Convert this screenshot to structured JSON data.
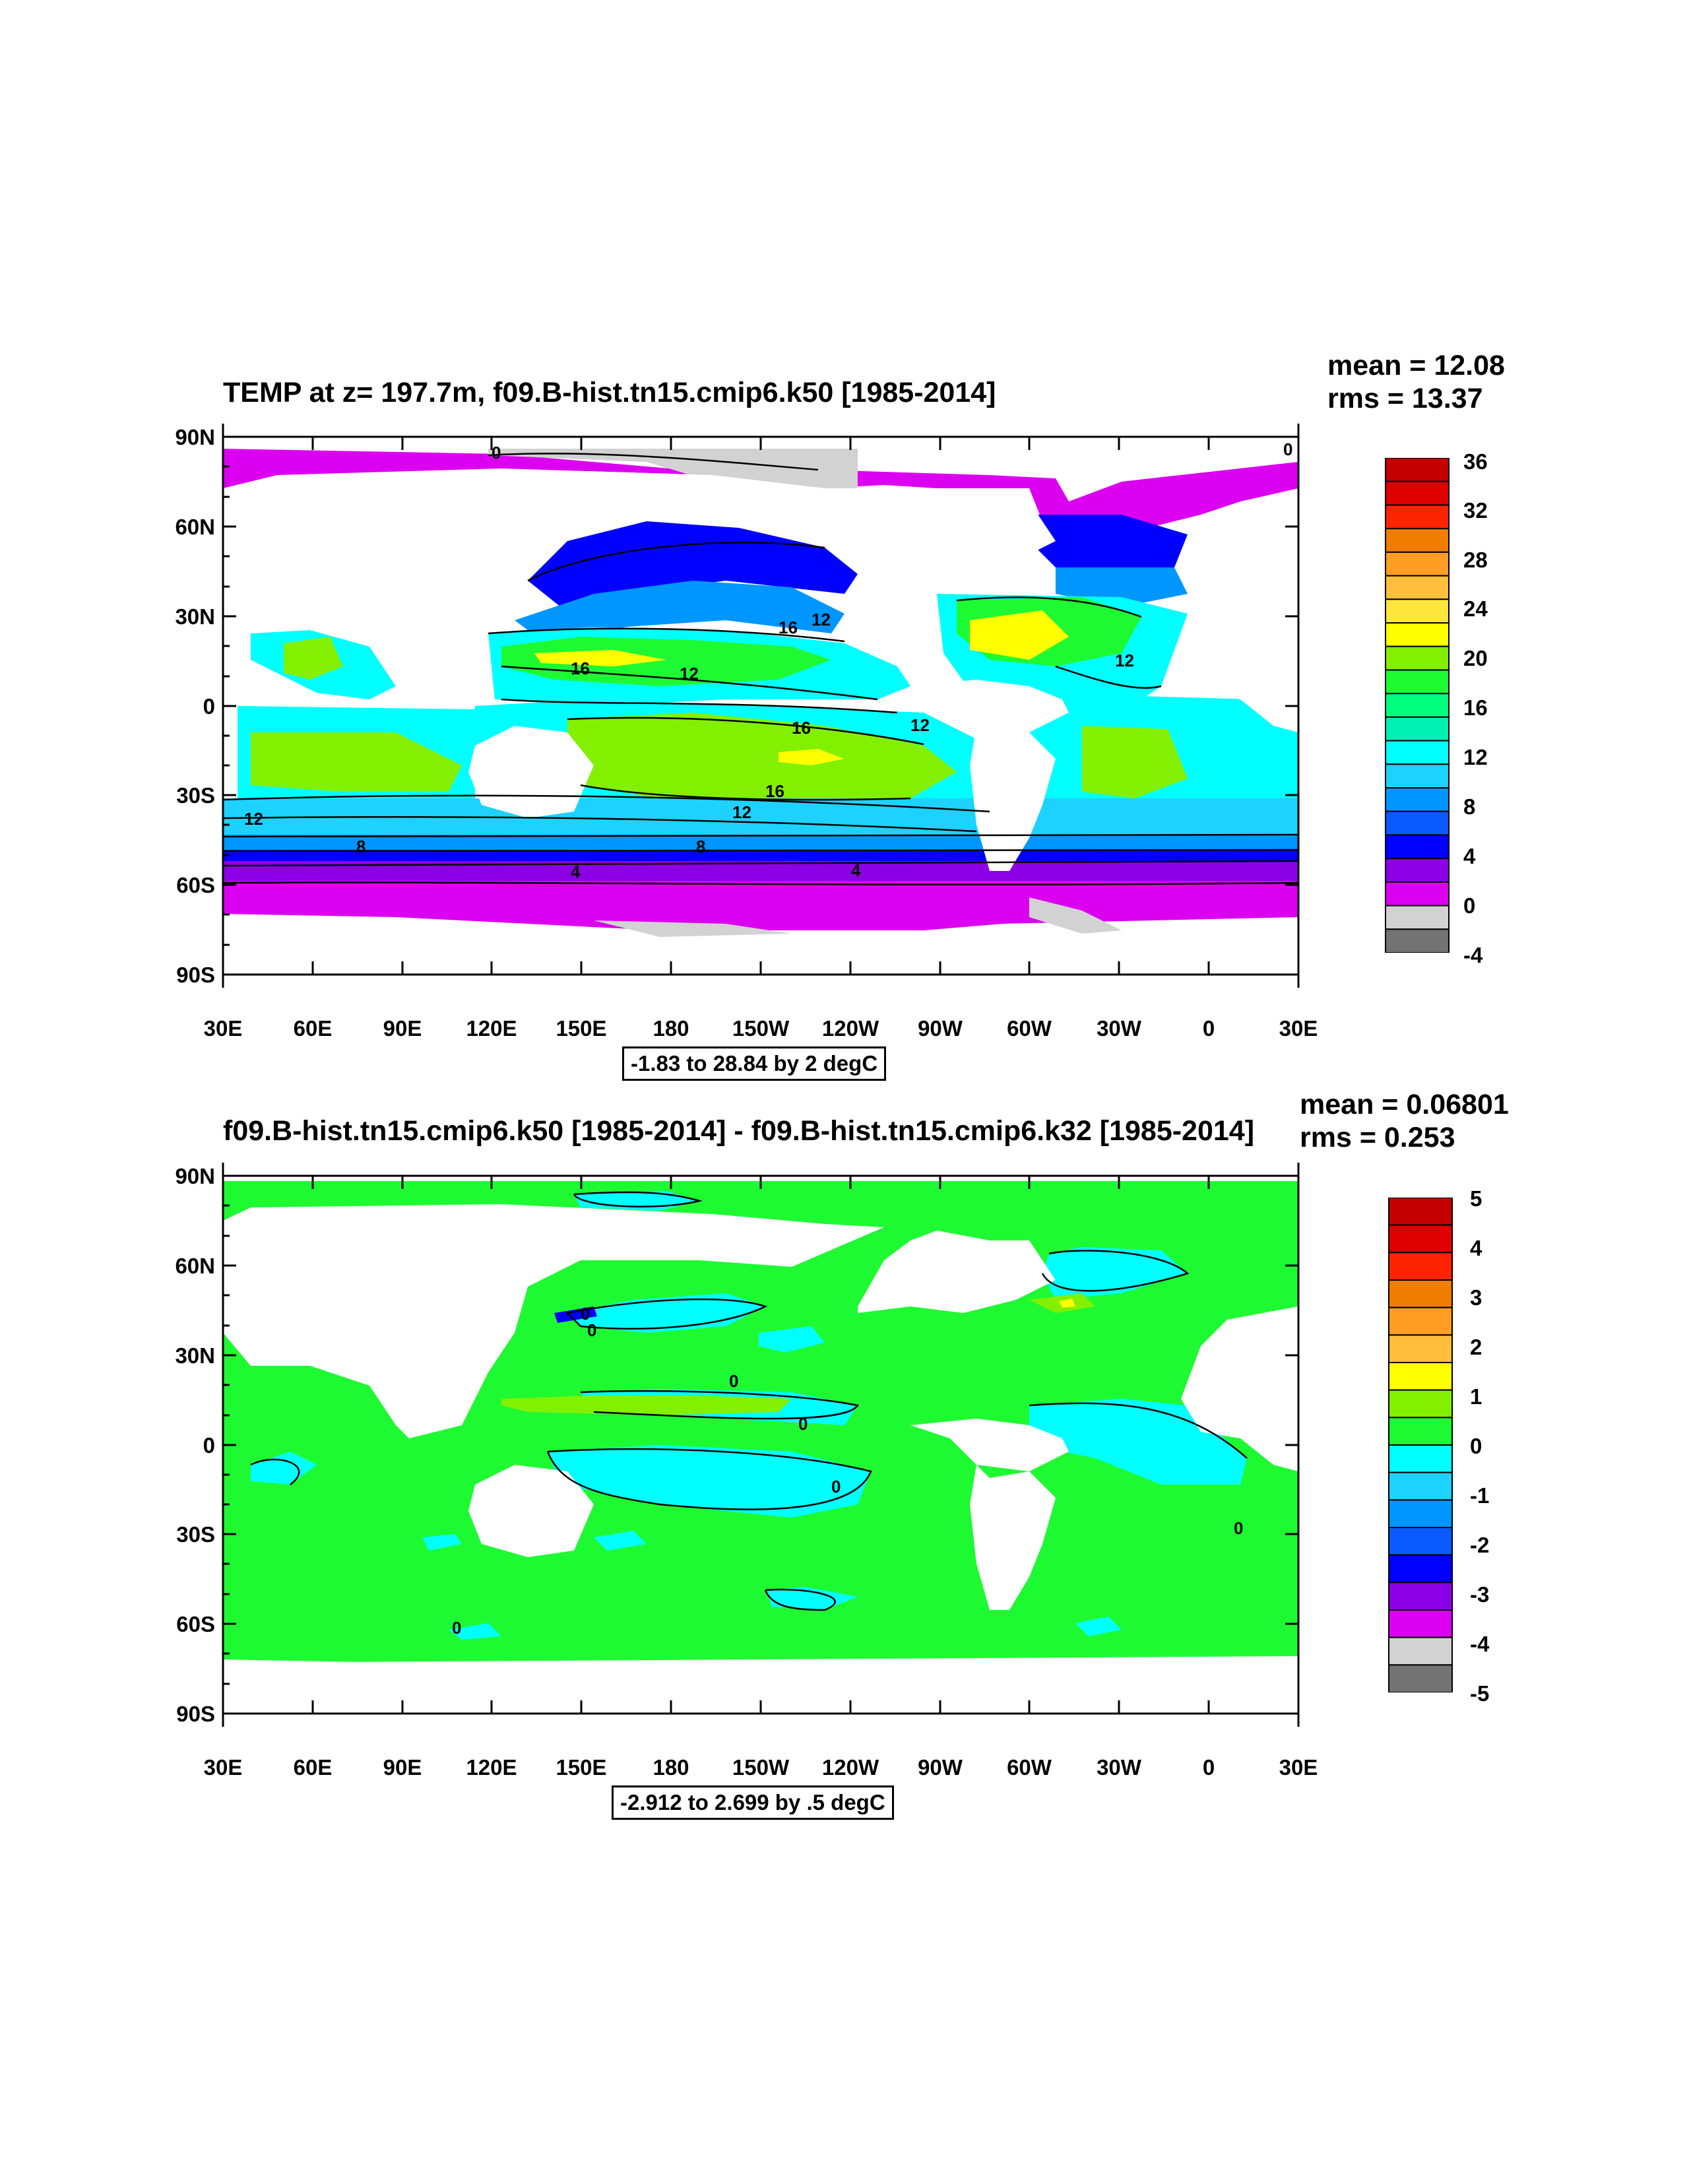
{
  "panels": [
    {
      "title": "TEMP at z= 197.7m, f09.B-hist.tn15.cmip6.k50 [1985-2014]",
      "mean_label": "mean = 12.08",
      "rms_label": "rms = 13.37",
      "info": "-1.83 to 28.84 by 2 degC",
      "lat_labels": [
        "90N",
        "60N",
        "30N",
        "0",
        "30S",
        "60S",
        "90S"
      ],
      "lon_labels": [
        "30E",
        "60E",
        "90E",
        "120E",
        "150E",
        "180",
        "150W",
        "120W",
        "90W",
        "60W",
        "30W",
        "0",
        "30E"
      ],
      "colorbar": {
        "labels": [
          "36",
          "32",
          "28",
          "24",
          "20",
          "16",
          "12",
          "8",
          "4",
          "0",
          "-4"
        ],
        "colors": [
          "#c40000",
          "#e00000",
          "#ff2400",
          "#f07d00",
          "#ff9d24",
          "#ffbe3c",
          "#ffe63c",
          "#ffff00",
          "#82f000",
          "#1efa32",
          "#00ff7f",
          "#00f0b4",
          "#00ffff",
          "#1ed2ff",
          "#0096ff",
          "#0a5aff",
          "#0000ff",
          "#8c00e6",
          "#dc00f0",
          "#d2d2d2",
          "#737373"
        ]
      },
      "contour_labels": [
        "0",
        "0",
        "16",
        "12",
        "16",
        "12",
        "16",
        "12",
        "16",
        "12",
        "12",
        "12",
        "8",
        "8",
        "4",
        "4"
      ]
    },
    {
      "title": "f09.B-hist.tn15.cmip6.k50 [1985-2014] - f09.B-hist.tn15.cmip6.k32 [1985-2014]",
      "mean_label": "mean = 0.06801",
      "rms_label": "rms = 0.253",
      "info": "-2.912 to 2.699 by .5 degC",
      "lat_labels": [
        "90N",
        "60N",
        "30N",
        "0",
        "30S",
        "60S",
        "90S"
      ],
      "lon_labels": [
        "30E",
        "60E",
        "90E",
        "120E",
        "150E",
        "180",
        "150W",
        "120W",
        "90W",
        "60W",
        "30W",
        "0",
        "30E"
      ],
      "colorbar": {
        "labels": [
          "5",
          "4",
          "3",
          "2",
          "1",
          "0",
          "-1",
          "-2",
          "-3",
          "-4",
          "-5"
        ],
        "colors": [
          "#c40000",
          "#e00000",
          "#ff2400",
          "#f07d00",
          "#ff9d24",
          "#ffbe3c",
          "#ffff00",
          "#82f000",
          "#1efa32",
          "#00ffff",
          "#1ed2ff",
          "#0096ff",
          "#0a5aff",
          "#0000ff",
          "#8c00e6",
          "#dc00f0",
          "#d2d2d2",
          "#737373"
        ]
      },
      "contour_labels": [
        "0",
        "0",
        "0",
        "0",
        "0",
        "0",
        "0"
      ]
    }
  ]
}
